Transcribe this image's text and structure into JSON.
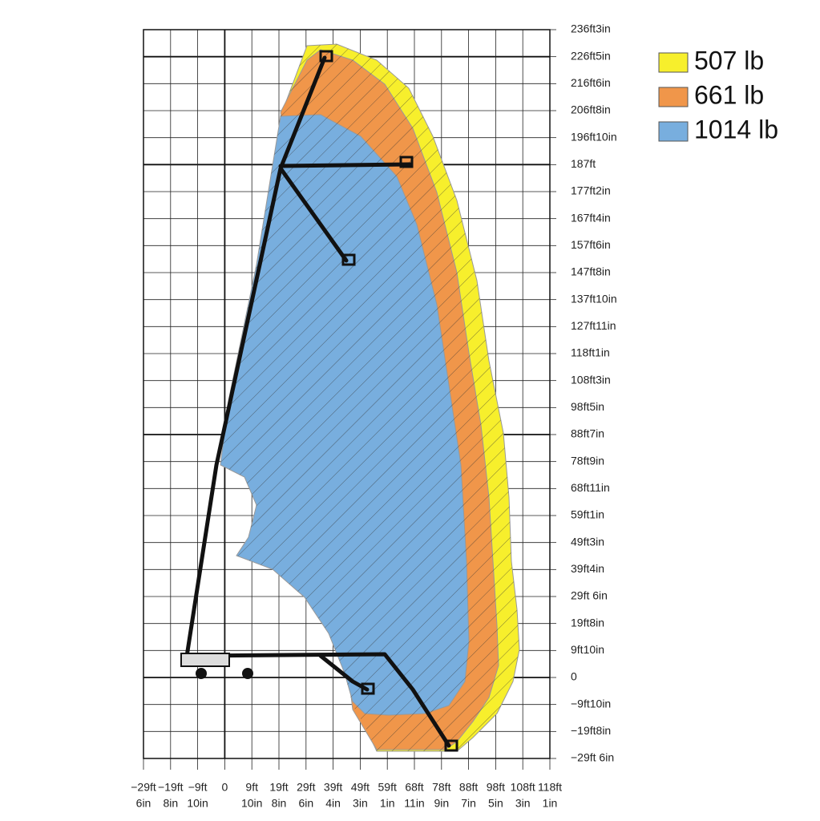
{
  "y_axis": {
    "labels": [
      "236ft3in",
      "226ft5in",
      "216ft6in",
      "206ft8in",
      "196ft10in",
      "187ft",
      "177ft2in",
      "167ft4in",
      "157ft6in",
      "147ft8in",
      "137ft10in",
      "127ft11in",
      "118ft1in",
      "108ft3in",
      "98ft5in",
      "88ft7in",
      "78ft9in",
      "68ft11in",
      "59ft1in",
      "49ft3in",
      "39ft4in",
      "29ft 6in",
      "19ft8in",
      "9ft10in",
      "0",
      "−9ft10in",
      "−19ft8in",
      "−29ft 6in"
    ]
  },
  "x_axis": {
    "labels": [
      [
        "−29ft",
        "6in"
      ],
      [
        "−19ft",
        "8in"
      ],
      [
        "−9ft",
        "10in"
      ],
      [
        "0"
      ],
      [
        "9ft",
        "10in"
      ],
      [
        "19ft",
        "8in"
      ],
      [
        "29ft",
        "6in"
      ],
      [
        "39ft",
        "4in"
      ],
      [
        "49ft",
        "3in"
      ],
      [
        "59ft",
        "1in"
      ],
      [
        "68ft",
        "11in"
      ],
      [
        "78ft",
        "9in"
      ],
      [
        "88ft",
        "7in"
      ],
      [
        "98ft",
        "5in"
      ],
      [
        "108ft",
        "3in"
      ],
      [
        "118ft",
        "1in"
      ]
    ]
  },
  "legend": [
    {
      "label": "507 lb",
      "color": "#f7ef2c"
    },
    {
      "label": "661 lb",
      "color": "#f0964a"
    },
    {
      "label": "1014 lb",
      "color": "#78aede"
    }
  ]
}
